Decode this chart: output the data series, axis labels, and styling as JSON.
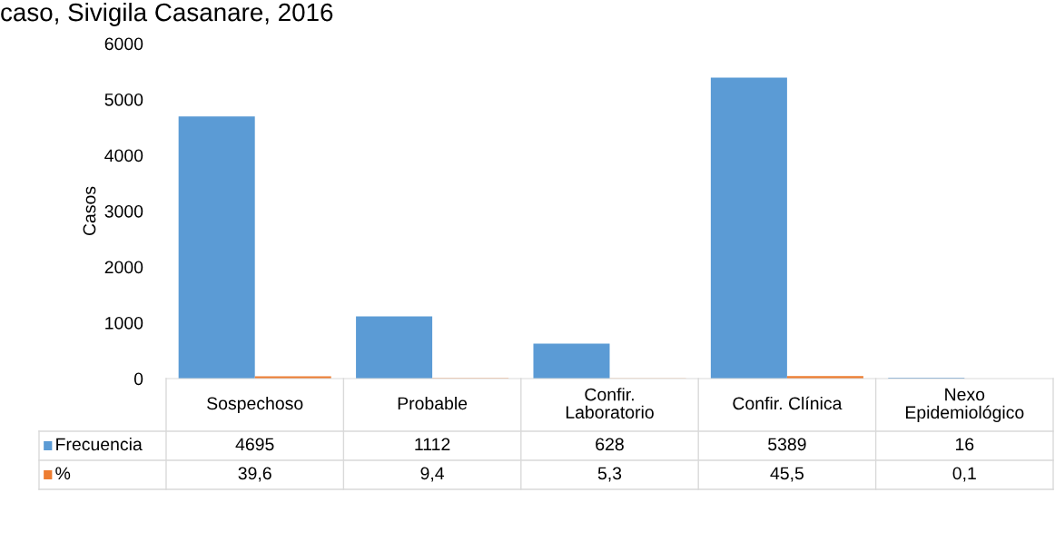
{
  "chart_data": {
    "type": "bar",
    "title": "caso, Sivigila Casanare, 2016",
    "ylabel": "Casos",
    "categories": [
      "Sospechoso",
      "Probable",
      "Confir.\nLaboratorio",
      "Confir. Clínica",
      "Nexo\nEpidemiológico"
    ],
    "series": [
      {
        "name": "Frecuencia",
        "color": "#5b9bd5",
        "values": [
          4695,
          1112,
          628,
          5389,
          16
        ],
        "value_labels": [
          "4695",
          "1112",
          "628",
          "5389",
          "16"
        ]
      },
      {
        "name": "%",
        "color": "#ed7d31",
        "values": [
          39.6,
          9.4,
          5.3,
          45.5,
          0.1
        ],
        "value_labels": [
          "39,6",
          "9,4",
          "5,3",
          "45,5",
          "0,1"
        ]
      }
    ],
    "ylim": [
      0,
      6000
    ],
    "yticks": [
      0,
      1000,
      2000,
      3000,
      4000,
      5000,
      6000
    ],
    "grid": false,
    "legend": "left"
  }
}
